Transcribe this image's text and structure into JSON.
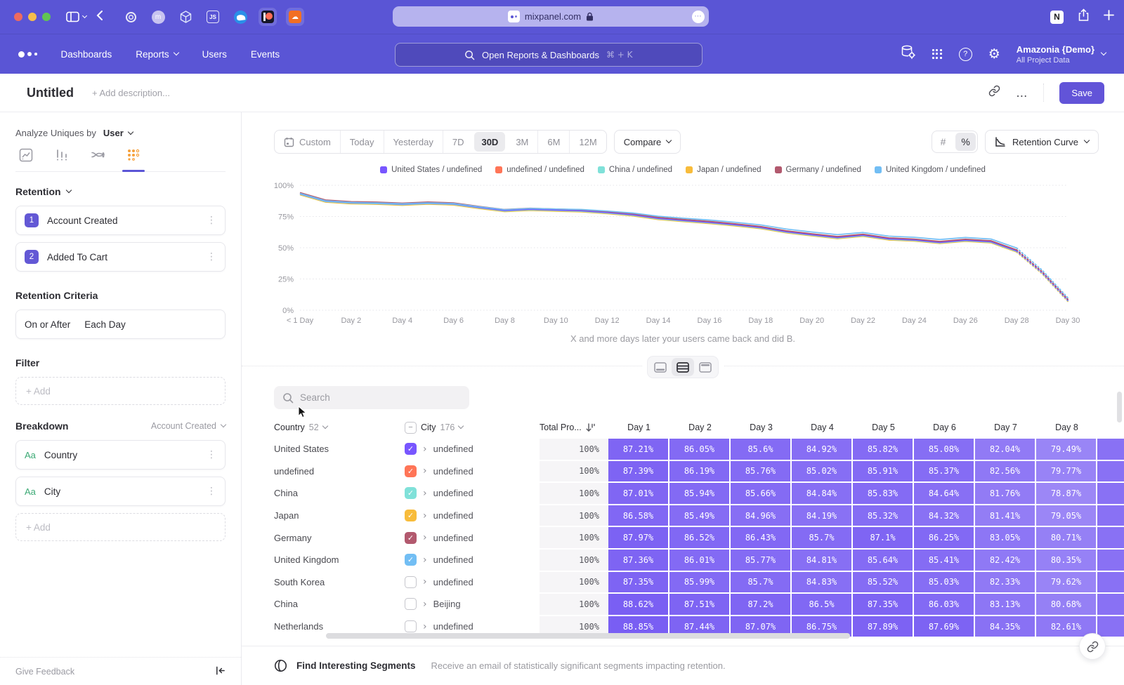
{
  "browser": {
    "url": "mixpanel.com",
    "favicons": [
      {
        "name": "target-favicon",
        "glyph": ""
      },
      {
        "name": "m-favicon",
        "glyph": "m"
      },
      {
        "name": "cube-favicon",
        "glyph": ""
      },
      {
        "name": "js-favicon",
        "glyph": "JS"
      },
      {
        "name": "bird-favicon",
        "glyph": ""
      },
      {
        "name": "patreon-favicon",
        "glyph": ""
      },
      {
        "name": "soundcloud-favicon",
        "glyph": "☁"
      }
    ]
  },
  "icons": {
    "checkmark": "✓",
    "indeterminate": "−",
    "kebab": "⋮",
    "expand": "›",
    "ellipsis": "…",
    "help": "?",
    "gear": "⚙",
    "notion_letter": "N",
    "addressbar_dots": "⋯"
  },
  "nav": {
    "items": [
      {
        "label": "Dashboards",
        "chevron": false
      },
      {
        "label": "Reports",
        "chevron": true
      },
      {
        "label": "Users",
        "chevron": false
      },
      {
        "label": "Events",
        "chevron": false
      }
    ],
    "search_placeholder": "Open Reports & Dashboards",
    "search_shortcut": "⌘ + K",
    "project_name": "Amazonia {Demo}",
    "project_scope": "All Project Data"
  },
  "header": {
    "title": "Untitled",
    "description_placeholder": "+ Add description...",
    "save_label": "Save"
  },
  "sidebar": {
    "analyze_label": "Analyze Uniques by",
    "analyze_value": "User",
    "section_retention": "Retention",
    "steps": [
      {
        "num": "1",
        "label": "Account Created"
      },
      {
        "num": "2",
        "label": "Added To Cart"
      }
    ],
    "criteria_title": "Retention Criteria",
    "criteria_left": "On or After",
    "criteria_right": "Each Day",
    "filter_title": "Filter",
    "add_label": "+ Add",
    "breakdown_title": "Breakdown",
    "breakdown_scope": "Account Created",
    "breakdowns": [
      {
        "type": "Aa",
        "label": "Country"
      },
      {
        "type": "Aa",
        "label": "City"
      }
    ],
    "footer_label": "Give Feedback"
  },
  "toolbar": {
    "ranges": [
      "Custom",
      "Today",
      "Yesterday",
      "7D",
      "30D",
      "3M",
      "6M",
      "12M"
    ],
    "active_range": "30D",
    "compare_label": "Compare",
    "unit_hash": "#",
    "unit_percent": "%",
    "view_label": "Retention Curve"
  },
  "chart_data": {
    "type": "line",
    "caption": "X and more days later your users came back and did B.",
    "ylim": [
      0,
      100
    ],
    "yticks": [
      "0%",
      "25%",
      "50%",
      "75%",
      "100%"
    ],
    "x_ticks": [
      {
        "day": 0,
        "label": "< 1 Day"
      },
      {
        "day": 2,
        "label": "Day 2"
      },
      {
        "day": 4,
        "label": "Day 4"
      },
      {
        "day": 6,
        "label": "Day 6"
      },
      {
        "day": 8,
        "label": "Day 8"
      },
      {
        "day": 10,
        "label": "Day 10"
      },
      {
        "day": 12,
        "label": "Day 12"
      },
      {
        "day": 14,
        "label": "Day 14"
      },
      {
        "day": 16,
        "label": "Day 16"
      },
      {
        "day": 18,
        "label": "Day 18"
      },
      {
        "day": 20,
        "label": "Day 20"
      },
      {
        "day": 22,
        "label": "Day 22"
      },
      {
        "day": 24,
        "label": "Day 24"
      },
      {
        "day": 26,
        "label": "Day 26"
      },
      {
        "day": 28,
        "label": "Day 28"
      },
      {
        "day": 30,
        "label": "Day 30"
      }
    ],
    "dashed_from_day": 28,
    "series": [
      {
        "name": "United States / undefined",
        "color": "#7856FF",
        "values": [
          93.3,
          87.4,
          86.1,
          85.7,
          84.9,
          85.8,
          85.1,
          82.3,
          79.8,
          80.8,
          80.2,
          79.6,
          78.2,
          76.4,
          73.5,
          71.8,
          70.3,
          68.4,
          66.2,
          62.8,
          60.4,
          58.2,
          60.0,
          57.1,
          56.2,
          54.3,
          56.0,
          54.8,
          47.5,
          30.0,
          8.0
        ]
      },
      {
        "name": "undefined / undefined",
        "color": "#FF7557",
        "values": [
          93.6,
          87.7,
          86.4,
          86.0,
          85.2,
          86.1,
          85.4,
          82.6,
          80.1,
          81.1,
          80.5,
          79.9,
          78.5,
          76.7,
          73.8,
          72.1,
          70.6,
          68.7,
          66.5,
          63.1,
          60.7,
          58.5,
          60.3,
          57.4,
          56.5,
          54.6,
          56.3,
          55.1,
          47.8,
          30.3,
          8.3
        ]
      },
      {
        "name": "China / undefined",
        "color": "#80E1D9",
        "values": [
          92.9,
          87.0,
          85.7,
          85.3,
          84.5,
          85.4,
          84.7,
          81.9,
          79.4,
          80.4,
          79.8,
          79.2,
          77.8,
          76.0,
          73.1,
          71.4,
          69.9,
          68.0,
          65.8,
          62.4,
          60.0,
          57.8,
          59.6,
          56.7,
          55.8,
          53.9,
          55.6,
          54.4,
          47.1,
          29.6,
          7.6
        ]
      },
      {
        "name": "Japan / undefined",
        "color": "#F8BC3B",
        "values": [
          92.4,
          86.5,
          85.2,
          84.8,
          84.0,
          84.9,
          84.2,
          81.4,
          78.9,
          79.9,
          79.3,
          78.7,
          77.3,
          75.5,
          72.6,
          70.9,
          69.4,
          67.5,
          65.3,
          61.9,
          59.5,
          57.3,
          59.1,
          56.2,
          55.3,
          53.4,
          55.1,
          53.9,
          46.6,
          29.1,
          7.1
        ]
      },
      {
        "name": "Germany / undefined",
        "color": "#B2596E",
        "values": [
          94.1,
          88.2,
          86.9,
          86.5,
          85.7,
          86.6,
          85.9,
          83.1,
          80.6,
          81.6,
          81.0,
          80.4,
          79.0,
          77.2,
          74.3,
          72.6,
          71.1,
          69.2,
          67.0,
          63.6,
          61.2,
          59.0,
          60.8,
          57.9,
          57.0,
          55.1,
          56.8,
          55.6,
          48.3,
          30.8,
          8.8
        ]
      },
      {
        "name": "United Kingdom / undefined",
        "color": "#72BEF4",
        "values": [
          93.5,
          87.6,
          86.3,
          85.9,
          85.2,
          86.0,
          85.4,
          82.8,
          80.5,
          81.5,
          81.0,
          80.6,
          79.4,
          77.8,
          75.2,
          73.6,
          72.2,
          70.4,
          68.3,
          65.0,
          62.6,
          60.5,
          62.2,
          59.3,
          58.4,
          56.6,
          58.2,
          57.0,
          49.8,
          32.0,
          10.0
        ]
      }
    ]
  },
  "table": {
    "search_placeholder": "Search",
    "country_header": "Country",
    "country_count": "52",
    "city_header": "City",
    "city_count": "176",
    "total_header": "Total Pro...",
    "day_headers": [
      "Day 1",
      "Day 2",
      "Day 3",
      "Day 4",
      "Day 5",
      "Day 6",
      "Day 7",
      "Day 8"
    ],
    "rows": [
      {
        "country": "United States",
        "city": "undefined",
        "checked": true,
        "checkbox_color": "#7856FF",
        "total": "100%",
        "days": [
          "87.21%",
          "86.05%",
          "85.6%",
          "84.92%",
          "85.82%",
          "85.08%",
          "82.04%",
          "79.49%"
        ]
      },
      {
        "country": "undefined",
        "city": "undefined",
        "checked": true,
        "checkbox_color": "#FF7557",
        "total": "100%",
        "days": [
          "87.39%",
          "86.19%",
          "85.76%",
          "85.02%",
          "85.91%",
          "85.37%",
          "82.56%",
          "79.77%"
        ]
      },
      {
        "country": "China",
        "city": "undefined",
        "checked": true,
        "checkbox_color": "#80E1D9",
        "total": "100%",
        "days": [
          "87.01%",
          "85.94%",
          "85.66%",
          "84.84%",
          "85.83%",
          "84.64%",
          "81.76%",
          "78.87%"
        ]
      },
      {
        "country": "Japan",
        "city": "undefined",
        "checked": true,
        "checkbox_color": "#F8BC3B",
        "total": "100%",
        "days": [
          "86.58%",
          "85.49%",
          "84.96%",
          "84.19%",
          "85.32%",
          "84.32%",
          "81.41%",
          "79.05%"
        ]
      },
      {
        "country": "Germany",
        "city": "undefined",
        "checked": true,
        "checkbox_color": "#B2596E",
        "total": "100%",
        "days": [
          "87.97%",
          "86.52%",
          "86.43%",
          "85.7%",
          "87.1%",
          "86.25%",
          "83.05%",
          "80.71%"
        ]
      },
      {
        "country": "United Kingdom",
        "city": "undefined",
        "checked": true,
        "checkbox_color": "#72BEF4",
        "total": "100%",
        "days": [
          "87.36%",
          "86.01%",
          "85.77%",
          "84.81%",
          "85.64%",
          "85.41%",
          "82.42%",
          "80.35%"
        ]
      },
      {
        "country": "South Korea",
        "city": "undefined",
        "checked": false,
        "checkbox_color": "",
        "total": "100%",
        "days": [
          "87.35%",
          "85.99%",
          "85.7%",
          "84.83%",
          "85.52%",
          "85.03%",
          "82.33%",
          "79.62%"
        ]
      },
      {
        "country": "China",
        "city": "Beijing",
        "checked": false,
        "checkbox_color": "",
        "total": "100%",
        "days": [
          "88.62%",
          "87.51%",
          "87.2%",
          "86.5%",
          "87.35%",
          "86.03%",
          "83.13%",
          "80.68%"
        ]
      },
      {
        "country": "Netherlands",
        "city": "undefined",
        "checked": false,
        "checkbox_color": "",
        "total": "100%",
        "days": [
          "88.85%",
          "87.44%",
          "87.07%",
          "86.75%",
          "87.89%",
          "87.69%",
          "84.35%",
          "82.61%"
        ]
      }
    ]
  },
  "footer_bar": {
    "title": "Find Interesting Segments",
    "subtitle": "Receive an email of statistically significant segments impacting retention."
  }
}
